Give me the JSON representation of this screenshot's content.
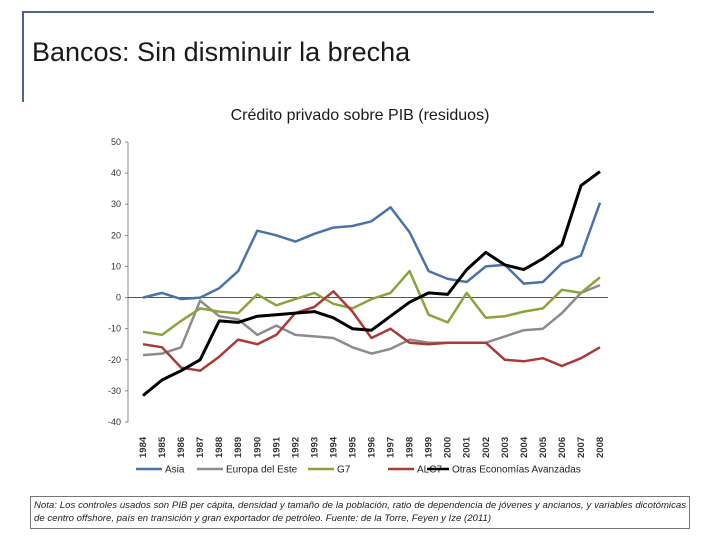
{
  "slide": {
    "title": "Bancos: Sin disminuir la brecha",
    "note": "Nota: Los controles usados son PIB per cápita, densidad y tamaño de la población, ratio de dependencia de jóvenes y ancianos, y variables dicotómicas de centro offshore, país en transición y gran exportador de petróleo. Fuente: de la Torre, Feyen y Ize (2011)"
  },
  "colors": {
    "frame": "#4a6690",
    "asia": "#4a73a9",
    "europa": "#8c8c8c",
    "g7": "#8aa43c",
    "alc7": "#a93a37",
    "otras": "#000000"
  },
  "chart_data": {
    "type": "line",
    "title": "Crédito privado sobre PIB (residuos)",
    "x": [
      "1984",
      "1985",
      "1986",
      "1987",
      "1988",
      "1989",
      "1990",
      "1991",
      "1992",
      "1993",
      "1994",
      "1995",
      "1996",
      "1997",
      "1998",
      "1999",
      "2000",
      "2001",
      "2002",
      "2003",
      "2004",
      "2005",
      "2006",
      "2007",
      "2008"
    ],
    "y_ticks": [
      "50",
      "40",
      "30",
      "20",
      "10",
      "0",
      "-10",
      "-20",
      "-30",
      "-40"
    ],
    "ylim": [
      -40,
      50
    ],
    "grid": false,
    "zero_line": true,
    "legend_position": "bottom",
    "series": [
      {
        "name": "Asia",
        "color_key": "asia",
        "values": [
          0,
          1.5,
          -0.5,
          0,
          3,
          8.5,
          21.5,
          20,
          18,
          20.5,
          22.5,
          23,
          24.5,
          29,
          21,
          8.5,
          6,
          5,
          10,
          10.5,
          4.5,
          5,
          11,
          13.5,
          30.5
        ]
      },
      {
        "name": "Europa del Este",
        "color_key": "europa",
        "values": [
          -18.5,
          -18,
          -16,
          -1,
          -6,
          -7,
          -12,
          -9,
          -12,
          -12.5,
          -13,
          -16,
          -18,
          -16.5,
          -13.5,
          -14.5,
          -14.5,
          -14.5,
          -14.5,
          -12.5,
          -10.5,
          -10,
          -5,
          1.5,
          4
        ]
      },
      {
        "name": "G7",
        "color_key": "g7",
        "values": [
          -11,
          -12,
          -7.5,
          -3.5,
          -4.5,
          -5,
          1,
          -2.5,
          -0.5,
          1.5,
          -2,
          -3.5,
          -0.5,
          1.5,
          8.5,
          -5.5,
          -8,
          1.5,
          -6.5,
          -6,
          -4.5,
          -3.5,
          2.5,
          1.5,
          6.5
        ]
      },
      {
        "name": "ALC7",
        "color_key": "alc7",
        "values": [
          -15,
          -16,
          -22.5,
          -23.5,
          -19,
          -13.5,
          -15,
          -12,
          -5,
          -3,
          2,
          -4.5,
          -13,
          -10,
          -14.5,
          -15,
          -14.5,
          -14.5,
          -14.5,
          -20,
          -20.5,
          -19.5,
          -22,
          -19.5,
          -16
        ]
      },
      {
        "name": "Otras Economías Avanzadas",
        "color_key": "otras",
        "values": [
          -31.5,
          -26.5,
          -23.5,
          -20,
          -7.5,
          -8,
          -6,
          -5.5,
          -5,
          -4.5,
          -6.5,
          -10,
          -10.5,
          -6,
          -1.5,
          1.5,
          1,
          9,
          14.5,
          10.5,
          9,
          12.5,
          17,
          36,
          40.5
        ]
      }
    ]
  }
}
